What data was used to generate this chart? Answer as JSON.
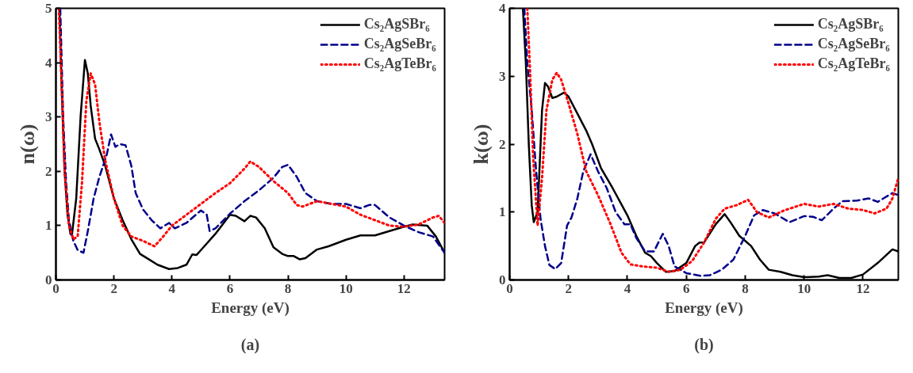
{
  "chart_data": [
    {
      "type": "line",
      "xlabel": "Energy (eV)",
      "ylabel": "n(ω)",
      "annotations": [
        "(a)"
      ],
      "xlim": [
        0,
        13.4
      ],
      "ylim": [
        0,
        5
      ],
      "xticks": [
        0,
        2,
        4,
        6,
        8,
        10,
        12
      ],
      "yticks": [
        0,
        1,
        2,
        3,
        4,
        5
      ],
      "grid": false,
      "legend": "top right",
      "series": [
        {
          "name": "Cs₂AgSBr₆",
          "color": "#000000",
          "line_style": "solid",
          "x": [
            0.12,
            0.2,
            0.3,
            0.4,
            0.5,
            0.55,
            0.7,
            0.85,
            1.0,
            1.1,
            1.2,
            1.35,
            1.5,
            1.7,
            2.0,
            2.3,
            2.6,
            2.9,
            3.2,
            3.5,
            3.9,
            4.2,
            4.5,
            4.7,
            4.85,
            5.0,
            5.5,
            6.0,
            6.2,
            6.5,
            6.7,
            6.9,
            7.2,
            7.5,
            7.8,
            8.0,
            8.2,
            8.4,
            8.6,
            9.0,
            9.4,
            10,
            10.5,
            11,
            11.5,
            12,
            12.3,
            12.8,
            13.1,
            13.4
          ],
          "values": [
            5,
            3.5,
            2,
            1.2,
            0.85,
            0.82,
            1.5,
            3,
            4.05,
            3.8,
            3.2,
            2.6,
            2.4,
            2.1,
            1.5,
            1.1,
            0.75,
            0.48,
            0.38,
            0.28,
            0.2,
            0.22,
            0.28,
            0.47,
            0.46,
            0.55,
            0.85,
            1.2,
            1.18,
            1.08,
            1.18,
            1.15,
            0.95,
            0.6,
            0.48,
            0.44,
            0.44,
            0.38,
            0.4,
            0.56,
            0.62,
            0.74,
            0.82,
            0.82,
            0.9,
            0.98,
            1.02,
            1.0,
            0.8,
            0.5
          ]
        },
        {
          "name": "Cs₂AgSeBr₆",
          "color": "#00008b",
          "line_style": "dashed",
          "x": [
            0.15,
            0.25,
            0.35,
            0.45,
            0.6,
            0.75,
            0.95,
            1.1,
            1.3,
            1.5,
            1.75,
            1.9,
            2.05,
            2.2,
            2.4,
            2.6,
            2.75,
            3.0,
            3.3,
            3.6,
            3.9,
            4.1,
            4.5,
            5.0,
            5.2,
            5.3,
            5.5,
            6.0,
            6.5,
            7.0,
            7.5,
            7.8,
            8.0,
            8.3,
            8.6,
            9.0,
            9.5,
            10,
            10.5,
            10.8,
            11.0,
            11.5,
            12,
            12.5,
            13,
            13.4
          ],
          "values": [
            5,
            3,
            1.8,
            1.1,
            0.72,
            0.55,
            0.5,
            0.9,
            1.5,
            1.9,
            2.3,
            2.68,
            2.45,
            2.5,
            2.48,
            2.1,
            1.6,
            1.3,
            1.1,
            0.95,
            1.05,
            0.95,
            1.05,
            1.28,
            1.2,
            0.9,
            0.95,
            1.22,
            1.45,
            1.65,
            1.88,
            2.08,
            2.12,
            1.9,
            1.6,
            1.45,
            1.4,
            1.4,
            1.32,
            1.38,
            1.38,
            1.15,
            1.0,
            0.88,
            0.8,
            0.5
          ]
        },
        {
          "name": "Cs₂AgTeBr₆",
          "color": "#ff0000",
          "line_style": "dotted",
          "x": [
            0.1,
            0.2,
            0.3,
            0.45,
            0.6,
            0.75,
            0.9,
            1.05,
            1.2,
            1.35,
            1.5,
            1.7,
            2.0,
            2.3,
            2.6,
            3.0,
            3.4,
            3.7,
            4.0,
            4.5,
            5.0,
            5.5,
            6.0,
            6.5,
            6.7,
            7.0,
            7.5,
            8.0,
            8.3,
            8.5,
            9.0,
            9.5,
            10,
            10.5,
            11,
            11.5,
            12,
            12.5,
            13,
            13.2,
            13.4
          ],
          "values": [
            5,
            3.6,
            2.0,
            1.0,
            0.75,
            0.8,
            1.8,
            3.3,
            3.8,
            3.6,
            2.9,
            2.2,
            1.5,
            1.0,
            0.8,
            0.72,
            0.62,
            0.8,
            1.0,
            1.2,
            1.4,
            1.6,
            1.78,
            2.05,
            2.18,
            2.08,
            1.82,
            1.6,
            1.38,
            1.35,
            1.45,
            1.4,
            1.35,
            1.2,
            1.1,
            1.0,
            0.98,
            1.02,
            1.15,
            1.18,
            1.05
          ]
        }
      ]
    },
    {
      "type": "line",
      "xlabel": "Energy (eV)",
      "ylabel": "k(ω)",
      "annotations": [
        "(b)"
      ],
      "xlim": [
        0,
        13.2
      ],
      "ylim": [
        0,
        4
      ],
      "xticks": [
        0,
        2,
        4,
        6,
        8,
        10,
        12
      ],
      "yticks": [
        0,
        1,
        2,
        3,
        4
      ],
      "grid": false,
      "legend": "top right",
      "series": [
        {
          "name": "Cs₂AgSBr₆",
          "color": "#000000",
          "line_style": "solid",
          "x": [
            0.45,
            0.55,
            0.65,
            0.75,
            0.82,
            0.95,
            1.1,
            1.2,
            1.3,
            1.45,
            1.6,
            1.85,
            2.0,
            2.3,
            2.6,
            2.8,
            3.1,
            3.5,
            4.0,
            4.3,
            4.6,
            4.8,
            5.0,
            5.3,
            5.6,
            6.0,
            6.3,
            6.45,
            6.6,
            7.0,
            7.3,
            7.5,
            7.8,
            8.2,
            8.5,
            8.8,
            9.2,
            9.6,
            10,
            10.5,
            10.8,
            11.2,
            11.6,
            12.0,
            12.5,
            13.0,
            13.2
          ],
          "values": [
            4,
            3.2,
            2,
            1.1,
            0.85,
            1.0,
            2.5,
            2.9,
            2.85,
            2.68,
            2.7,
            2.76,
            2.7,
            2.45,
            2.2,
            2.0,
            1.65,
            1.35,
            0.95,
            0.65,
            0.4,
            0.35,
            0.25,
            0.12,
            0.13,
            0.25,
            0.5,
            0.55,
            0.55,
            0.82,
            0.97,
            0.85,
            0.65,
            0.5,
            0.3,
            0.15,
            0.12,
            0.07,
            0.04,
            0.05,
            0.07,
            0.03,
            0.03,
            0.08,
            0.25,
            0.45,
            0.42
          ]
        },
        {
          "name": "Cs₂AgSeBr₆",
          "color": "#00008b",
          "line_style": "dashed",
          "x": [
            0.5,
            0.6,
            0.75,
            0.9,
            1.05,
            1.2,
            1.35,
            1.55,
            1.75,
            1.95,
            2.1,
            2.3,
            2.5,
            2.75,
            3.0,
            3.3,
            3.6,
            3.9,
            4.1,
            4.3,
            4.6,
            4.9,
            5.2,
            5.4,
            5.6,
            6.0,
            6.5,
            6.8,
            7.2,
            7.6,
            8.0,
            8.3,
            8.6,
            9.0,
            9.5,
            10,
            10.3,
            10.6,
            11.0,
            11.3,
            11.8,
            12.2,
            12.5,
            13.0,
            13.2
          ],
          "values": [
            4,
            3.2,
            2.5,
            1.6,
            0.9,
            0.5,
            0.22,
            0.16,
            0.25,
            0.8,
            0.92,
            1.2,
            1.6,
            1.85,
            1.6,
            1.35,
            1.0,
            0.82,
            0.82,
            0.62,
            0.42,
            0.42,
            0.68,
            0.5,
            0.2,
            0.1,
            0.06,
            0.07,
            0.15,
            0.3,
            0.65,
            0.95,
            1.03,
            0.98,
            0.85,
            0.94,
            0.93,
            0.88,
            1.05,
            1.16,
            1.17,
            1.2,
            1.15,
            1.28,
            1.25
          ]
        },
        {
          "name": "Cs₂AgTeBr₆",
          "color": "#ff0000",
          "line_style": "dotted",
          "x": [
            0.6,
            0.7,
            0.8,
            0.95,
            1.1,
            1.25,
            1.45,
            1.6,
            1.75,
            2.0,
            2.3,
            2.6,
            3.0,
            3.4,
            3.8,
            4.1,
            4.5,
            5.0,
            5.4,
            5.8,
            6.2,
            6.6,
            7.0,
            7.3,
            7.7,
            8.1,
            8.4,
            8.8,
            9.3,
            10,
            10.5,
            11,
            11.5,
            12,
            12.4,
            12.8,
            13.0,
            13.2
          ],
          "values": [
            4,
            3,
            1.8,
            0.8,
            1.5,
            2.5,
            2.95,
            3.05,
            2.95,
            2.6,
            2.15,
            1.6,
            1.25,
            0.85,
            0.4,
            0.23,
            0.2,
            0.18,
            0.12,
            0.15,
            0.28,
            0.55,
            0.9,
            1.05,
            1.1,
            1.18,
            1.0,
            0.92,
            1.02,
            1.12,
            1.08,
            1.12,
            1.05,
            1.03,
            0.98,
            1.05,
            1.2,
            1.5
          ]
        }
      ]
    }
  ]
}
